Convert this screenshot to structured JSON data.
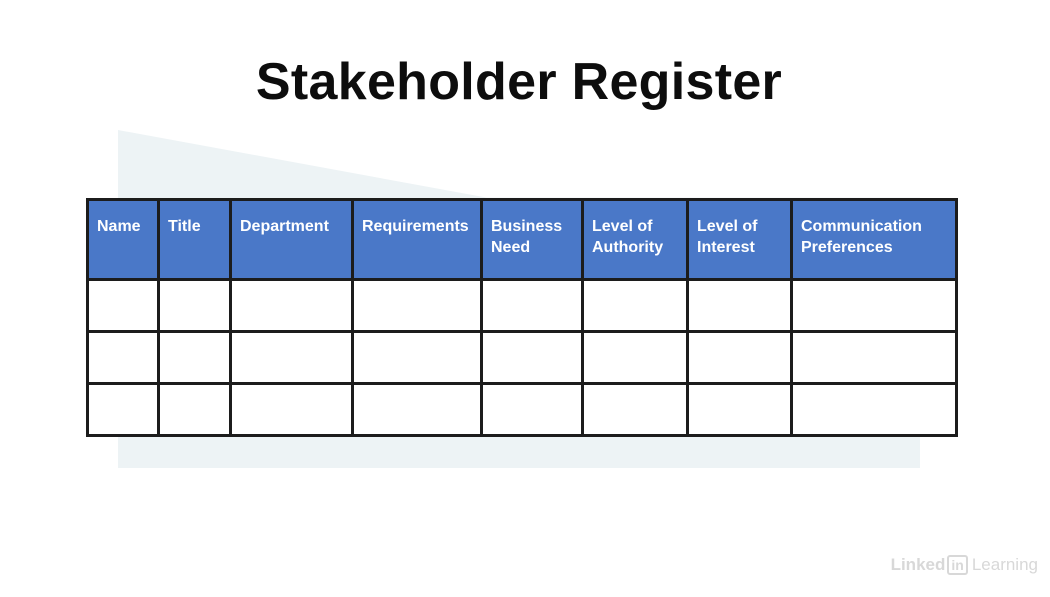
{
  "title": "Stakeholder Register",
  "table": {
    "headers": [
      "Name",
      "Title",
      "Department",
      "Requirements",
      "Business\nNeed",
      "Level of\nAuthority",
      "Level of\nInterest",
      "Communication\nPreferences"
    ],
    "rows": [
      [
        "",
        "",
        "",
        "",
        "",
        "",
        "",
        ""
      ],
      [
        "",
        "",
        "",
        "",
        "",
        "",
        "",
        ""
      ],
      [
        "",
        "",
        "",
        "",
        "",
        "",
        "",
        ""
      ]
    ]
  },
  "watermark": {
    "prefix": "Linked",
    "badge": "in",
    "suffix": "Learning"
  },
  "colors": {
    "header_fill": "#4a78c8",
    "border": "#1c1c1c",
    "backdrop": "#edf3f5"
  }
}
